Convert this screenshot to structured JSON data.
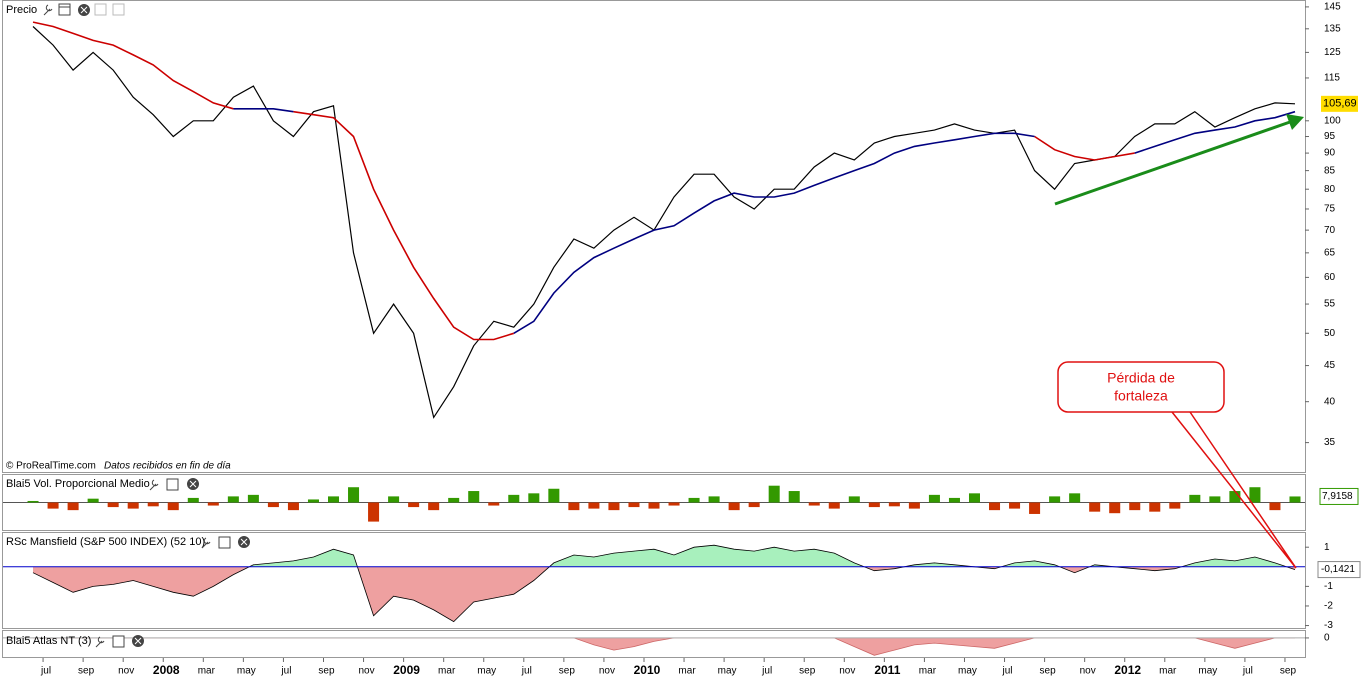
{
  "chart_data": [
    {
      "type": "line",
      "title": "Precio",
      "source": "© ProRealTime.com",
      "note": "Datos recibidos en fin de día",
      "log_scale": true,
      "x": [
        "2007-06",
        "2007-07",
        "2007-08",
        "2007-09",
        "2007-10",
        "2007-11",
        "2007-12",
        "2008-01",
        "2008-02",
        "2008-03",
        "2008-04",
        "2008-05",
        "2008-06",
        "2008-07",
        "2008-08",
        "2008-09",
        "2008-10",
        "2008-11",
        "2008-12",
        "2009-01",
        "2009-02",
        "2009-03",
        "2009-04",
        "2009-05",
        "2009-06",
        "2009-07",
        "2009-08",
        "2009-09",
        "2009-10",
        "2009-11",
        "2009-12",
        "2010-01",
        "2010-02",
        "2010-03",
        "2010-04",
        "2010-05",
        "2010-06",
        "2010-07",
        "2010-08",
        "2010-09",
        "2010-10",
        "2010-11",
        "2010-12",
        "2011-01",
        "2011-02",
        "2011-03",
        "2011-04",
        "2011-05",
        "2011-06",
        "2011-07",
        "2011-08",
        "2011-09",
        "2011-10",
        "2011-11",
        "2011-12",
        "2012-01",
        "2012-02",
        "2012-03",
        "2012-04",
        "2012-05",
        "2012-06",
        "2012-07",
        "2012-08",
        "2012-09"
      ],
      "xlim": [
        "2007-05",
        "2012-10"
      ],
      "xticks": [
        {
          "value": "2007-07",
          "label": "jul"
        },
        {
          "value": "2007-09",
          "label": "sep"
        },
        {
          "value": "2007-11",
          "label": "nov"
        },
        {
          "value": "2008-01",
          "label": "2008"
        },
        {
          "value": "2008-03",
          "label": "mar"
        },
        {
          "value": "2008-05",
          "label": "may"
        },
        {
          "value": "2008-07",
          "label": "jul"
        },
        {
          "value": "2008-09",
          "label": "sep"
        },
        {
          "value": "2008-11",
          "label": "nov"
        },
        {
          "value": "2009-01",
          "label": "2009"
        },
        {
          "value": "2009-03",
          "label": "mar"
        },
        {
          "value": "2009-05",
          "label": "may"
        },
        {
          "value": "2009-07",
          "label": "jul"
        },
        {
          "value": "2009-09",
          "label": "sep"
        },
        {
          "value": "2009-11",
          "label": "nov"
        },
        {
          "value": "2010-01",
          "label": "2010"
        },
        {
          "value": "2010-03",
          "label": "mar"
        },
        {
          "value": "2010-05",
          "label": "may"
        },
        {
          "value": "2010-07",
          "label": "jul"
        },
        {
          "value": "2010-09",
          "label": "sep"
        },
        {
          "value": "2010-11",
          "label": "nov"
        },
        {
          "value": "2011-01",
          "label": "2011"
        },
        {
          "value": "2011-03",
          "label": "mar"
        },
        {
          "value": "2011-05",
          "label": "may"
        },
        {
          "value": "2011-07",
          "label": "jul"
        },
        {
          "value": "2011-09",
          "label": "sep"
        },
        {
          "value": "2011-11",
          "label": "nov"
        },
        {
          "value": "2012-01",
          "label": "2012"
        },
        {
          "value": "2012-03",
          "label": "mar"
        },
        {
          "value": "2012-05",
          "label": "may"
        },
        {
          "value": "2012-07",
          "label": "jul"
        },
        {
          "value": "2012-09",
          "label": "sep"
        }
      ],
      "ylim": [
        31.8,
        148.3
      ],
      "yticks": [
        145,
        135,
        125,
        115,
        100,
        95,
        90,
        85,
        80,
        75,
        70,
        65,
        60,
        55,
        50,
        45,
        40,
        35
      ],
      "series": [
        {
          "color": "#000000",
          "values": [
            136,
            128,
            118,
            125,
            118,
            108,
            102,
            95,
            100,
            100,
            108,
            112,
            100,
            95,
            103,
            105,
            65,
            50,
            55,
            50,
            38,
            42,
            48,
            52,
            51,
            55,
            62,
            68,
            66,
            70,
            73,
            70,
            78,
            84,
            84,
            78,
            75,
            80,
            80,
            86,
            90,
            88,
            93,
            95,
            96,
            97,
            99,
            97,
            96,
            97,
            85,
            80,
            87,
            88,
            89,
            95,
            99,
            99,
            103,
            98,
            101,
            104,
            106,
            105.69
          ]
        },
        {
          "color": "#cc0000",
          "values": [
            138,
            136,
            133,
            130,
            128,
            124,
            120,
            114,
            110,
            106,
            104,
            null,
            null,
            103,
            102,
            101,
            95,
            80,
            70,
            62,
            56,
            51,
            49,
            49,
            50,
            null,
            null,
            null,
            null,
            null,
            null,
            null,
            null,
            null,
            null,
            null,
            null,
            null,
            null,
            null,
            null,
            null,
            null,
            null,
            null,
            null,
            null,
            null,
            null,
            null,
            95,
            91,
            89,
            88,
            89,
            90,
            null,
            null,
            null,
            null,
            null,
            null,
            null,
            null
          ]
        },
        {
          "color": "#000080",
          "values": [
            null,
            null,
            null,
            null,
            null,
            null,
            null,
            null,
            null,
            null,
            104,
            104,
            104,
            103,
            null,
            null,
            null,
            null,
            null,
            null,
            null,
            null,
            null,
            null,
            50,
            52,
            57,
            61,
            64,
            66,
            68,
            70,
            71,
            74,
            77,
            79,
            78,
            78,
            79,
            81,
            83,
            85,
            87,
            90,
            92,
            93,
            94,
            95,
            96,
            96,
            95,
            null,
            null,
            null,
            null,
            90,
            92,
            94,
            96,
            97,
            98,
            100,
            101,
            103
          ]
        }
      ],
      "last_label": {
        "value": 105.69,
        "label": "105,69"
      },
      "annotation": [
        "Pérdida de",
        "fortaleza"
      ]
    },
    {
      "type": "bar",
      "title": "Blai5 Vol. Proporcional Medio",
      "ylim": [
        -36,
        36
      ],
      "positive_color": "#339900",
      "negative_color": "#cc3300",
      "values": [
        2,
        -8,
        -10,
        5,
        -6,
        -8,
        -5,
        -10,
        6,
        -4,
        8,
        10,
        -6,
        -10,
        4,
        8,
        20,
        -25,
        8,
        -6,
        -10,
        6,
        15,
        -4,
        10,
        12,
        18,
        -10,
        -8,
        -10,
        -6,
        -8,
        -4,
        6,
        8,
        -10,
        -6,
        22,
        15,
        -4,
        -8,
        8,
        -6,
        -5,
        -8,
        10,
        6,
        12,
        -10,
        -8,
        -15,
        8,
        12,
        -12,
        -14,
        -10,
        -12,
        -8,
        10,
        8,
        15,
        20,
        -10,
        7.9158
      ],
      "last_label": {
        "value": 7.9158,
        "label": "7,9158"
      }
    },
    {
      "type": "area",
      "title": "RSc Mansfield (S&P 500 INDEX) (52 10)",
      "ylim": [
        -3.125,
        1.725
      ],
      "yticks": [
        1,
        -1,
        -2,
        -3
      ],
      "positive_color": "#a8f0bd",
      "negative_color": "#eea0a0",
      "zero_color": "#0000cc",
      "values": [
        -0.3,
        -0.8,
        -1.3,
        -1.0,
        -0.9,
        -0.7,
        -1.0,
        -1.3,
        -1.5,
        -1.0,
        -0.4,
        0.1,
        0.2,
        0.3,
        0.5,
        0.9,
        0.6,
        -2.5,
        -1.5,
        -1.7,
        -2.2,
        -2.8,
        -1.8,
        -1.6,
        -1.4,
        -0.7,
        0.2,
        0.6,
        0.5,
        0.7,
        0.8,
        0.9,
        0.6,
        1.0,
        1.1,
        0.9,
        0.8,
        1.0,
        0.8,
        0.9,
        0.7,
        0.2,
        -0.2,
        -0.1,
        0.1,
        0.2,
        0.1,
        0.0,
        -0.1,
        0.2,
        0.3,
        0.1,
        -0.3,
        0.1,
        0.0,
        -0.1,
        -0.2,
        -0.1,
        0.2,
        0.4,
        0.3,
        0.5,
        0.2,
        -0.1421
      ],
      "last_label": {
        "value": -0.1421,
        "label": "-0,1421"
      }
    },
    {
      "type": "area",
      "title": "Blai5 Atlas NT (3)",
      "ylim": [
        -1.1,
        0.4
      ],
      "yticks": [
        0
      ],
      "negative_color": "#eea0a0",
      "values": [
        0,
        0,
        0,
        0,
        0,
        0,
        0,
        0,
        0,
        0,
        0,
        0,
        0,
        0,
        0,
        0,
        0,
        0,
        0,
        0,
        0,
        0,
        0,
        0,
        0,
        0,
        0,
        0,
        -0.4,
        -0.7,
        -0.5,
        -0.2,
        0,
        0,
        0,
        0,
        0,
        0,
        0,
        0,
        0,
        -0.5,
        -1,
        -0.7,
        -0.4,
        -0.3,
        -0.4,
        -0.5,
        -0.6,
        -0.3,
        0,
        0,
        0,
        0,
        0,
        0,
        0,
        0,
        0,
        -0.3,
        -0.6,
        -0.3,
        0,
        0
      ]
    }
  ]
}
